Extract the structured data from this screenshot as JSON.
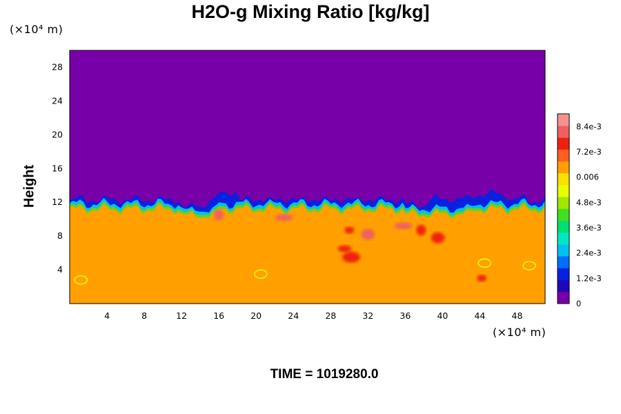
{
  "chart_data": {
    "type": "heatmap",
    "title": "H2O-g Mixing Ratio [kg/kg]",
    "ylabel": "Height",
    "y_unit": "(×10⁴ m)",
    "x_unit": "(×10⁴ m)",
    "xlim": [
      0,
      51
    ],
    "ylim": [
      0,
      30
    ],
    "x_ticks": [
      4,
      8,
      12,
      16,
      20,
      24,
      28,
      32,
      36,
      40,
      44,
      48
    ],
    "y_ticks": [
      4,
      8,
      12,
      16,
      20,
      24,
      28
    ],
    "colorbar": {
      "range": [
        0,
        0.009
      ],
      "tick_values": [
        0,
        0.0012,
        0.0024,
        0.0036,
        0.0048,
        0.006,
        0.0072,
        0.0084
      ],
      "tick_labels": [
        "0",
        "1.2e-3",
        "2.4e-3",
        "3.6e-3",
        "4.8e-3",
        "0.006",
        "7.2e-3",
        "8.4e-3"
      ],
      "colors": [
        "#7800a8",
        "#2008b8",
        "#0820e0",
        "#0070ff",
        "#00c0f0",
        "#00e8c0",
        "#00e070",
        "#40e020",
        "#a0e800",
        "#e8ff00",
        "#f8e000",
        "#ffa000",
        "#ff6020",
        "#f02010",
        "#f06060",
        "#f89090"
      ]
    },
    "fields": {
      "upper_value": 0,
      "lower_value": 0.0064,
      "interface_height": 11.5,
      "interface_range": [
        10.5,
        13
      ]
    },
    "grid": false,
    "legend": "colorbar-right"
  },
  "footer": {
    "time_label": "TIME = 1019280.0"
  }
}
